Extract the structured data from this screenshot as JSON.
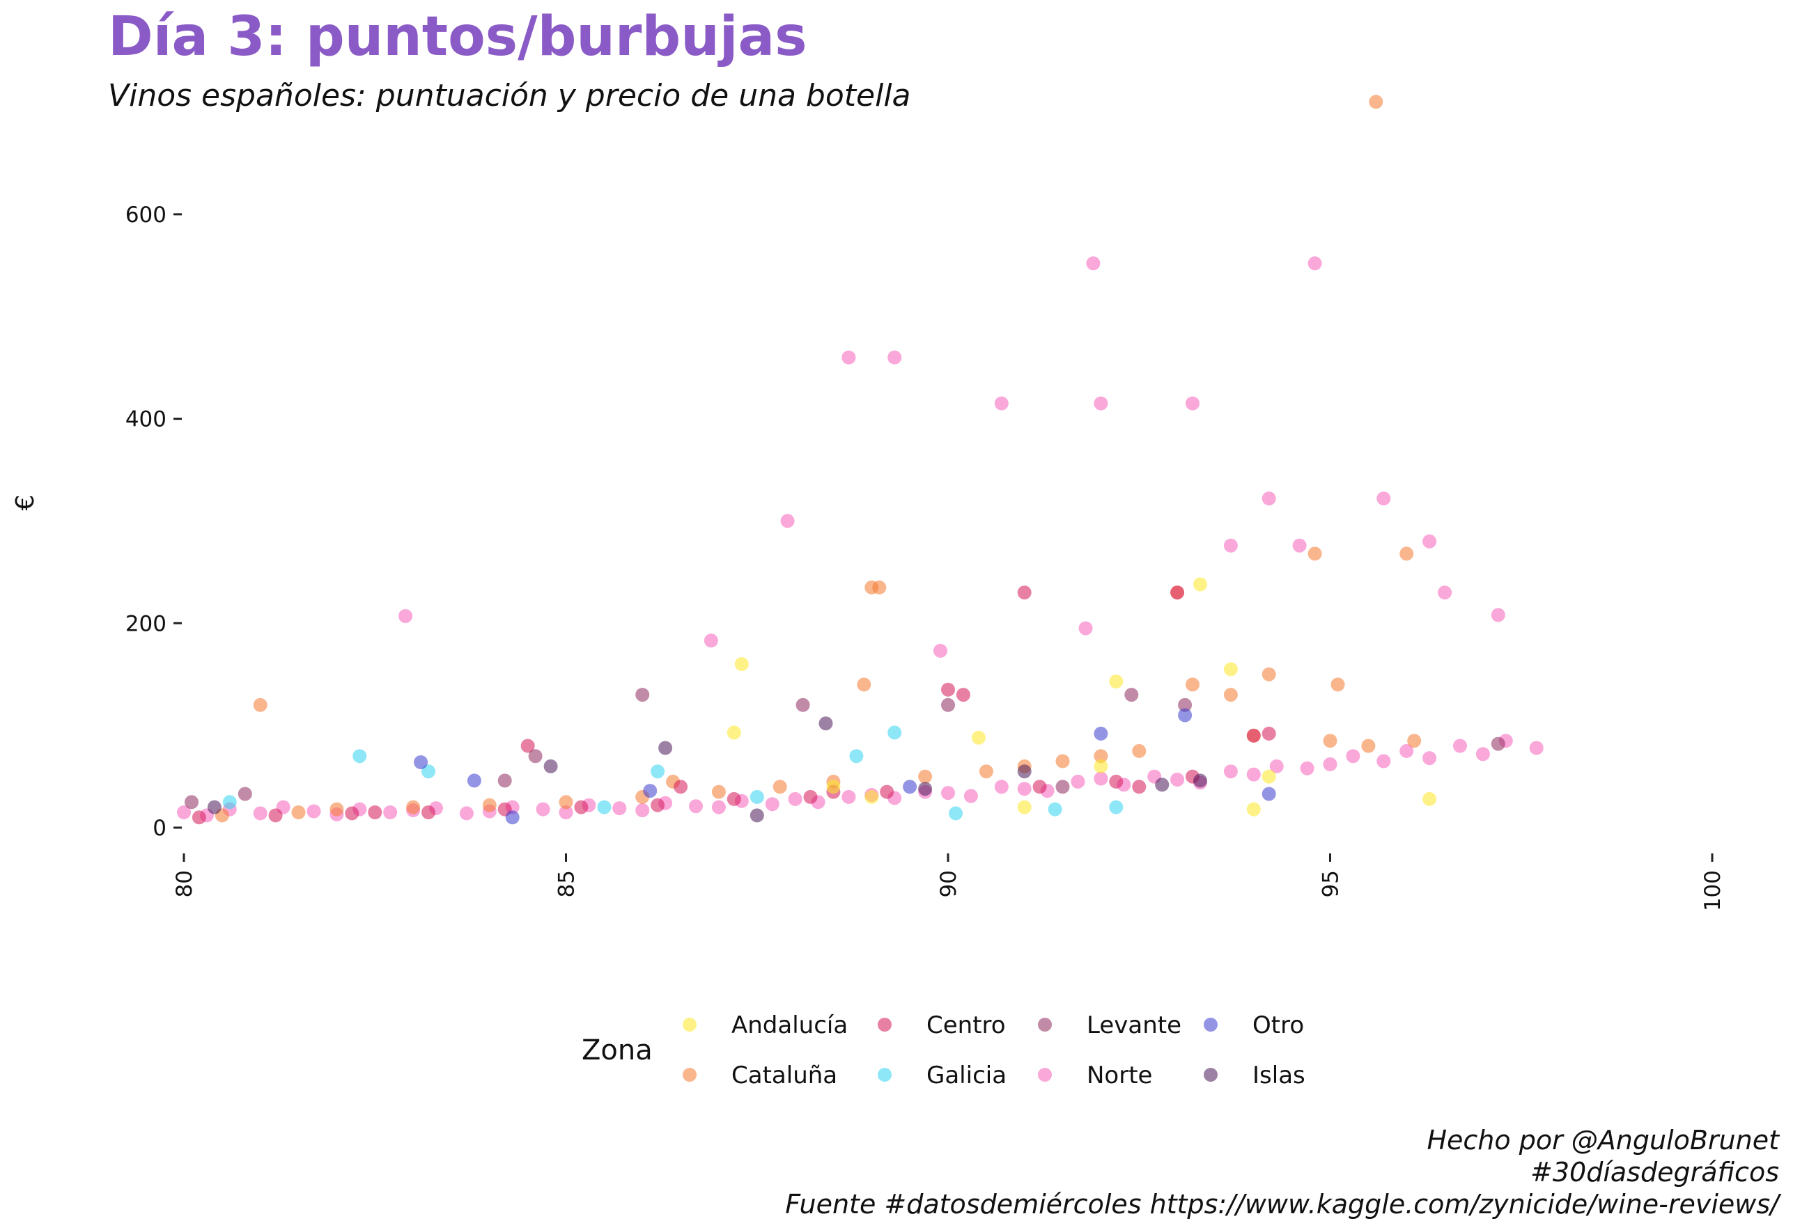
{
  "title": "Día 3: puntos/burbujas",
  "subtitle": "Vinos españoles: puntuación y precio de una botella",
  "caption": [
    "Hecho por @AnguloBrunet",
    "#30díasdegráficos",
    "Fuente #datosdemiércoles https://www.kaggle.com/zynicide/wine-reviews/"
  ],
  "chart_data": {
    "type": "scatter",
    "title": "Día 3: puntos/burbujas",
    "subtitle": "Vinos españoles: puntuación y precio de una botella",
    "xlabel": "",
    "ylabel": "€",
    "xlim": [
      80,
      100
    ],
    "ylim": [
      0,
      700
    ],
    "x_ticks": [
      80,
      85,
      90,
      95,
      100
    ],
    "y_ticks": [
      0,
      200,
      400,
      600
    ],
    "grid": false,
    "legend": {
      "title": "Zona",
      "placement": "bottom",
      "entries": [
        {
          "name": "Andalucía",
          "color": "#fde725"
        },
        {
          "name": "Cataluña",
          "color": "#f47a30"
        },
        {
          "name": "Centro",
          "color": "#d6185a"
        },
        {
          "name": "Galicia",
          "color": "#2fd3f0"
        },
        {
          "name": "Levante",
          "color": "#8e2a5c"
        },
        {
          "name": "Norte",
          "color": "#f55fbb"
        },
        {
          "name": "Otro",
          "color": "#3c3ccf"
        },
        {
          "name": "Islas",
          "color": "#4a1a5a"
        }
      ]
    },
    "series": [
      {
        "name": "Norte",
        "x": [
          80,
          80.3,
          80.6,
          81,
          81.3,
          81.7,
          82,
          82.3,
          82.7,
          83,
          83.3,
          83.7,
          84,
          84.3,
          84.7,
          85,
          85.3,
          85.7,
          86,
          86.3,
          86.7,
          87,
          87.3,
          87.7,
          88,
          88.3,
          88.7,
          89,
          89.3,
          89.7,
          90,
          90.3,
          90.7,
          91,
          91.3,
          91.7,
          92,
          92.3,
          92.7,
          93,
          93.3,
          93.7,
          94,
          94.3,
          94.7,
          95,
          95.3,
          95.7,
          96,
          96.3,
          96.7,
          97,
          97.3,
          97.7,
          82.9,
          86.9,
          87.9,
          88.7,
          89.3,
          90.7,
          91.9,
          92,
          93.2,
          94.8,
          94.2,
          95.7,
          96.3,
          96.5,
          97.2,
          93.7,
          94.6,
          91.8,
          89.9
        ],
        "y": [
          15,
          12,
          18,
          14,
          20,
          16,
          13,
          18,
          15,
          17,
          19,
          14,
          16,
          20,
          18,
          15,
          22,
          19,
          17,
          24,
          21,
          20,
          26,
          23,
          28,
          25,
          30,
          32,
          29,
          35,
          34,
          31,
          40,
          38,
          36,
          45,
          48,
          42,
          50,
          47,
          44,
          55,
          52,
          60,
          58,
          62,
          70,
          65,
          75,
          68,
          80,
          72,
          85,
          78,
          207,
          183,
          300,
          460,
          460,
          415,
          552,
          415,
          415,
          552,
          322,
          322,
          280,
          230,
          208,
          276,
          276,
          195,
          173
        ]
      },
      {
        "name": "Cataluña",
        "x": [
          80.5,
          81,
          81.5,
          82,
          83,
          84,
          85,
          86,
          87,
          87.8,
          88.5,
          89,
          89.1,
          89.7,
          90.5,
          91,
          91.5,
          92,
          92.5,
          93,
          93.2,
          93.7,
          94,
          94.2,
          94.8,
          95,
          95.1,
          95.5,
          95.6,
          96,
          96.1,
          86.4,
          88.9
        ],
        "y": [
          12,
          120,
          15,
          18,
          20,
          22,
          25,
          30,
          35,
          40,
          45,
          235,
          235,
          50,
          55,
          60,
          65,
          70,
          75,
          230,
          140,
          130,
          90,
          150,
          268,
          85,
          140,
          80,
          710,
          268,
          85,
          45,
          140
        ]
      },
      {
        "name": "Centro",
        "x": [
          80.2,
          81.2,
          82.2,
          83.2,
          84.2,
          85.2,
          86.2,
          87.2,
          88.2,
          89.2,
          90.2,
          91,
          91.2,
          92.2,
          93,
          93.2,
          94,
          94.2,
          82.5,
          84.5,
          86.5,
          88.5,
          90,
          92.5
        ],
        "y": [
          10,
          12,
          14,
          15,
          18,
          20,
          22,
          28,
          30,
          35,
          130,
          230,
          40,
          45,
          230,
          50,
          90,
          92,
          15,
          80,
          40,
          35,
          135,
          40
        ]
      },
      {
        "name": "Andalucía",
        "x": [
          87.2,
          87.3,
          90.4,
          91,
          92,
          92.2,
          93.3,
          93.7,
          94,
          94.2,
          96.3,
          89,
          88.5
        ],
        "y": [
          93,
          160,
          88,
          20,
          60,
          143,
          238,
          155,
          18,
          50,
          28,
          30,
          40
        ]
      },
      {
        "name": "Galicia",
        "x": [
          80.6,
          82.3,
          83.2,
          85.5,
          86.2,
          87.5,
          88.8,
          89.3,
          90.1,
          91.4,
          92.2
        ],
        "y": [
          25,
          70,
          55,
          20,
          55,
          30,
          70,
          93,
          14,
          18,
          20
        ]
      },
      {
        "name": "Levante",
        "x": [
          80.1,
          80.8,
          84.2,
          84.6,
          86,
          88.1,
          90,
          91.5,
          92.4,
          93.1,
          97.2
        ],
        "y": [
          25,
          33,
          46,
          70,
          130,
          120,
          120,
          40,
          130,
          120,
          82
        ]
      },
      {
        "name": "Otro",
        "x": [
          83.1,
          83.8,
          84.3,
          86.1,
          89.5,
          92,
          93.1,
          94.2
        ],
        "y": [
          64,
          46,
          10,
          36,
          40,
          92,
          110,
          33
        ]
      },
      {
        "name": "Islas",
        "x": [
          80.4,
          84.8,
          86.3,
          87.5,
          88.4,
          89.7,
          91,
          92.8,
          93.3
        ],
        "y": [
          20,
          60,
          78,
          12,
          102,
          38,
          55,
          42,
          46
        ]
      }
    ]
  }
}
